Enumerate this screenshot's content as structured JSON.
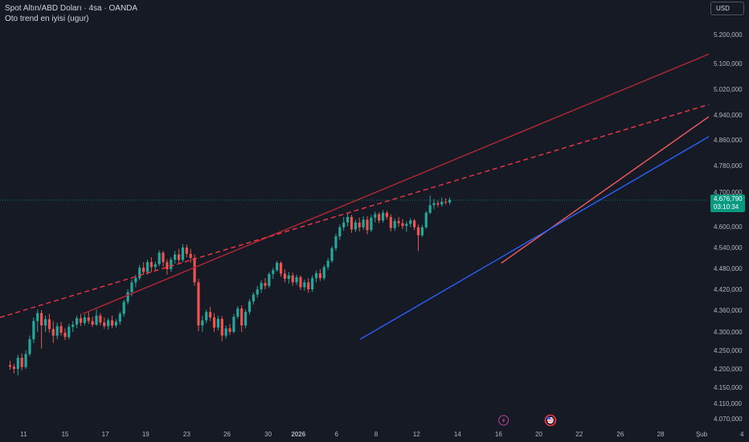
{
  "header": {
    "title": "Spot Altın/ABD Doları · 4sa · OANDA",
    "indicator": "Oto trend en iyisi (ugur)",
    "currency": "USD"
  },
  "chart_data": {
    "type": "candlestick",
    "y_axis_labels": [
      "5.200,000",
      "5.100,000",
      "5.020,000",
      "4.940,000",
      "4.860,000",
      "4.780,000",
      "4.700,000",
      "4.600,000",
      "4.540,000",
      "4.480,000",
      "4.420,000",
      "4.360,000",
      "4.300,000",
      "4.250,000",
      "4.200,000",
      "4.150,000",
      "4.110,000",
      "4.070,000"
    ],
    "y_axis_values": [
      5200,
      5100,
      5020,
      4940,
      4860,
      4780,
      4700,
      4600,
      4540,
      4480,
      4420,
      4360,
      4300,
      4250,
      4200,
      4150,
      4110,
      4070
    ],
    "x_axis_labels": [
      "11",
      "15",
      "17",
      "19",
      "23",
      "26",
      "30",
      "2026",
      "6",
      "8",
      "12",
      "14",
      "16",
      "20",
      "22",
      "26",
      "28",
      "Şub",
      "4"
    ],
    "x_axis_positions": [
      0.06,
      5.8,
      11.4,
      17,
      22.7,
      28.3,
      34,
      38.2,
      43.5,
      49,
      54.6,
      60.3,
      66,
      71.6,
      77.2,
      82.9,
      88.5,
      94.2,
      99.8
    ],
    "x_range": [
      -2,
      102
    ],
    "current_price": "4.676,790",
    "current_price_value": 4676.79,
    "countdown": "03:10:34",
    "grid": false,
    "candles": [
      {
        "t": 0,
        "o": 4210,
        "h": 4222,
        "l": 4198,
        "c": 4206
      },
      {
        "t": 1,
        "o": 4206,
        "h": 4214,
        "l": 4188,
        "c": 4200
      },
      {
        "t": 2,
        "o": 4200,
        "h": 4238,
        "l": 4182,
        "c": 4230
      },
      {
        "t": 3,
        "o": 4230,
        "h": 4242,
        "l": 4196,
        "c": 4205
      },
      {
        "t": 4,
        "o": 4205,
        "h": 4250,
        "l": 4200,
        "c": 4240
      },
      {
        "t": 5,
        "o": 4240,
        "h": 4290,
        "l": 4234,
        "c": 4280
      },
      {
        "t": 6,
        "o": 4280,
        "h": 4340,
        "l": 4270,
        "c": 4330
      },
      {
        "t": 7,
        "o": 4330,
        "h": 4362,
        "l": 4300,
        "c": 4352
      },
      {
        "t": 8,
        "o": 4352,
        "h": 4360,
        "l": 4255,
        "c": 4318
      },
      {
        "t": 9,
        "o": 4318,
        "h": 4345,
        "l": 4300,
        "c": 4335
      },
      {
        "t": 10,
        "o": 4335,
        "h": 4350,
        "l": 4298,
        "c": 4308
      },
      {
        "t": 11,
        "o": 4308,
        "h": 4330,
        "l": 4270,
        "c": 4290
      },
      {
        "t": 12,
        "o": 4290,
        "h": 4325,
        "l": 4280,
        "c": 4316
      },
      {
        "t": 13,
        "o": 4316,
        "h": 4328,
        "l": 4290,
        "c": 4298
      },
      {
        "t": 14,
        "o": 4298,
        "h": 4310,
        "l": 4278,
        "c": 4286
      },
      {
        "t": 15,
        "o": 4286,
        "h": 4322,
        "l": 4280,
        "c": 4314
      },
      {
        "t": 16,
        "o": 4314,
        "h": 4330,
        "l": 4300,
        "c": 4320
      },
      {
        "t": 17,
        "o": 4320,
        "h": 4345,
        "l": 4310,
        "c": 4338
      },
      {
        "t": 18,
        "o": 4338,
        "h": 4350,
        "l": 4316,
        "c": 4325
      },
      {
        "t": 19,
        "o": 4325,
        "h": 4348,
        "l": 4318,
        "c": 4340
      },
      {
        "t": 20,
        "o": 4340,
        "h": 4356,
        "l": 4322,
        "c": 4330
      },
      {
        "t": 21,
        "o": 4330,
        "h": 4342,
        "l": 4314,
        "c": 4320
      },
      {
        "t": 22,
        "o": 4320,
        "h": 4362,
        "l": 4316,
        "c": 4345
      },
      {
        "t": 23,
        "o": 4345,
        "h": 4352,
        "l": 4318,
        "c": 4326
      },
      {
        "t": 24,
        "o": 4326,
        "h": 4340,
        "l": 4308,
        "c": 4316
      },
      {
        "t": 25,
        "o": 4316,
        "h": 4338,
        "l": 4306,
        "c": 4332
      },
      {
        "t": 26,
        "o": 4332,
        "h": 4345,
        "l": 4310,
        "c": 4318
      },
      {
        "t": 27,
        "o": 4318,
        "h": 4336,
        "l": 4312,
        "c": 4328
      },
      {
        "t": 28,
        "o": 4328,
        "h": 4356,
        "l": 4320,
        "c": 4350
      },
      {
        "t": 29,
        "o": 4350,
        "h": 4390,
        "l": 4342,
        "c": 4384
      },
      {
        "t": 30,
        "o": 4384,
        "h": 4420,
        "l": 4376,
        "c": 4412
      },
      {
        "t": 31,
        "o": 4412,
        "h": 4448,
        "l": 4400,
        "c": 4440
      },
      {
        "t": 32,
        "o": 4440,
        "h": 4462,
        "l": 4426,
        "c": 4452
      },
      {
        "t": 33,
        "o": 4452,
        "h": 4490,
        "l": 4446,
        "c": 4482
      },
      {
        "t": 34,
        "o": 4482,
        "h": 4498,
        "l": 4462,
        "c": 4470
      },
      {
        "t": 35,
        "o": 4470,
        "h": 4505,
        "l": 4462,
        "c": 4498
      },
      {
        "t": 36,
        "o": 4498,
        "h": 4512,
        "l": 4470,
        "c": 4484
      },
      {
        "t": 37,
        "o": 4484,
        "h": 4500,
        "l": 4472,
        "c": 4492
      },
      {
        "t": 38,
        "o": 4492,
        "h": 4532,
        "l": 4486,
        "c": 4525
      },
      {
        "t": 39,
        "o": 4525,
        "h": 4530,
        "l": 4485,
        "c": 4498
      },
      {
        "t": 40,
        "o": 4498,
        "h": 4506,
        "l": 4462,
        "c": 4478
      },
      {
        "t": 41,
        "o": 4478,
        "h": 4512,
        "l": 4470,
        "c": 4505
      },
      {
        "t": 42,
        "o": 4505,
        "h": 4530,
        "l": 4494,
        "c": 4520
      },
      {
        "t": 43,
        "o": 4520,
        "h": 4536,
        "l": 4496,
        "c": 4504
      },
      {
        "t": 44,
        "o": 4504,
        "h": 4550,
        "l": 4498,
        "c": 4540
      },
      {
        "t": 45,
        "o": 4540,
        "h": 4548,
        "l": 4512,
        "c": 4522
      },
      {
        "t": 46,
        "o": 4522,
        "h": 4536,
        "l": 4496,
        "c": 4510
      },
      {
        "t": 47,
        "o": 4510,
        "h": 4520,
        "l": 4430,
        "c": 4440
      },
      {
        "t": 48,
        "o": 4440,
        "h": 4450,
        "l": 4302,
        "c": 4318
      },
      {
        "t": 49,
        "o": 4318,
        "h": 4345,
        "l": 4300,
        "c": 4332
      },
      {
        "t": 50,
        "o": 4332,
        "h": 4362,
        "l": 4324,
        "c": 4355
      },
      {
        "t": 51,
        "o": 4355,
        "h": 4370,
        "l": 4330,
        "c": 4340
      },
      {
        "t": 52,
        "o": 4340,
        "h": 4352,
        "l": 4300,
        "c": 4312
      },
      {
        "t": 53,
        "o": 4312,
        "h": 4345,
        "l": 4304,
        "c": 4336
      },
      {
        "t": 54,
        "o": 4336,
        "h": 4344,
        "l": 4275,
        "c": 4290
      },
      {
        "t": 55,
        "o": 4290,
        "h": 4318,
        "l": 4282,
        "c": 4310
      },
      {
        "t": 56,
        "o": 4310,
        "h": 4322,
        "l": 4292,
        "c": 4300
      },
      {
        "t": 57,
        "o": 4300,
        "h": 4350,
        "l": 4296,
        "c": 4342
      },
      {
        "t": 58,
        "o": 4342,
        "h": 4372,
        "l": 4336,
        "c": 4365
      },
      {
        "t": 59,
        "o": 4365,
        "h": 4374,
        "l": 4300,
        "c": 4318
      },
      {
        "t": 60,
        "o": 4318,
        "h": 4362,
        "l": 4310,
        "c": 4355
      },
      {
        "t": 61,
        "o": 4355,
        "h": 4392,
        "l": 4348,
        "c": 4385
      },
      {
        "t": 62,
        "o": 4385,
        "h": 4412,
        "l": 4376,
        "c": 4405
      },
      {
        "t": 63,
        "o": 4405,
        "h": 4430,
        "l": 4396,
        "c": 4420
      },
      {
        "t": 64,
        "o": 4420,
        "h": 4446,
        "l": 4410,
        "c": 4438
      },
      {
        "t": 65,
        "o": 4438,
        "h": 4452,
        "l": 4420,
        "c": 4430
      },
      {
        "t": 66,
        "o": 4430,
        "h": 4470,
        "l": 4424,
        "c": 4464
      },
      {
        "t": 67,
        "o": 4464,
        "h": 4482,
        "l": 4450,
        "c": 4475
      },
      {
        "t": 68,
        "o": 4475,
        "h": 4502,
        "l": 4470,
        "c": 4496
      },
      {
        "t": 69,
        "o": 4496,
        "h": 4500,
        "l": 4456,
        "c": 4465
      },
      {
        "t": 70,
        "o": 4465,
        "h": 4478,
        "l": 4440,
        "c": 4450
      },
      {
        "t": 71,
        "o": 4450,
        "h": 4470,
        "l": 4436,
        "c": 4460
      },
      {
        "t": 72,
        "o": 4460,
        "h": 4468,
        "l": 4430,
        "c": 4440
      },
      {
        "t": 73,
        "o": 4440,
        "h": 4462,
        "l": 4432,
        "c": 4455
      },
      {
        "t": 74,
        "o": 4455,
        "h": 4460,
        "l": 4418,
        "c": 4426
      },
      {
        "t": 75,
        "o": 4426,
        "h": 4448,
        "l": 4416,
        "c": 4440
      },
      {
        "t": 76,
        "o": 4440,
        "h": 4452,
        "l": 4410,
        "c": 4420
      },
      {
        "t": 77,
        "o": 4420,
        "h": 4460,
        "l": 4412,
        "c": 4452
      },
      {
        "t": 78,
        "o": 4452,
        "h": 4474,
        "l": 4440,
        "c": 4466
      },
      {
        "t": 79,
        "o": 4466,
        "h": 4478,
        "l": 4444,
        "c": 4452
      },
      {
        "t": 80,
        "o": 4452,
        "h": 4490,
        "l": 4446,
        "c": 4484
      },
      {
        "t": 81,
        "o": 4484,
        "h": 4510,
        "l": 4476,
        "c": 4502
      },
      {
        "t": 82,
        "o": 4502,
        "h": 4545,
        "l": 4496,
        "c": 4538
      },
      {
        "t": 83,
        "o": 4538,
        "h": 4580,
        "l": 4530,
        "c": 4572
      },
      {
        "t": 84,
        "o": 4572,
        "h": 4606,
        "l": 4562,
        "c": 4598
      },
      {
        "t": 85,
        "o": 4598,
        "h": 4628,
        "l": 4588,
        "c": 4612
      },
      {
        "t": 86,
        "o": 4612,
        "h": 4638,
        "l": 4600,
        "c": 4628
      },
      {
        "t": 87,
        "o": 4628,
        "h": 4634,
        "l": 4582,
        "c": 4592
      },
      {
        "t": 88,
        "o": 4592,
        "h": 4620,
        "l": 4584,
        "c": 4612
      },
      {
        "t": 89,
        "o": 4612,
        "h": 4626,
        "l": 4586,
        "c": 4598
      },
      {
        "t": 90,
        "o": 4598,
        "h": 4630,
        "l": 4590,
        "c": 4620
      },
      {
        "t": 91,
        "o": 4620,
        "h": 4630,
        "l": 4578,
        "c": 4590
      },
      {
        "t": 92,
        "o": 4590,
        "h": 4634,
        "l": 4584,
        "c": 4626
      },
      {
        "t": 93,
        "o": 4626,
        "h": 4644,
        "l": 4612,
        "c": 4636
      },
      {
        "t": 94,
        "o": 4636,
        "h": 4642,
        "l": 4610,
        "c": 4618
      },
      {
        "t": 95,
        "o": 4618,
        "h": 4648,
        "l": 4612,
        "c": 4640
      },
      {
        "t": 96,
        "o": 4640,
        "h": 4646,
        "l": 4620,
        "c": 4628
      },
      {
        "t": 97,
        "o": 4628,
        "h": 4636,
        "l": 4586,
        "c": 4596
      },
      {
        "t": 98,
        "o": 4596,
        "h": 4624,
        "l": 4588,
        "c": 4616
      },
      {
        "t": 99,
        "o": 4616,
        "h": 4628,
        "l": 4600,
        "c": 4610
      },
      {
        "t": 100,
        "o": 4610,
        "h": 4622,
        "l": 4592,
        "c": 4602
      },
      {
        "t": 101,
        "o": 4602,
        "h": 4615,
        "l": 4585,
        "c": 4608
      },
      {
        "t": 102,
        "o": 4608,
        "h": 4625,
        "l": 4598,
        "c": 4618
      },
      {
        "t": 103,
        "o": 4618,
        "h": 4622,
        "l": 4590,
        "c": 4598
      },
      {
        "t": 104,
        "o": 4598,
        "h": 4606,
        "l": 4530,
        "c": 4575
      },
      {
        "t": 105,
        "o": 4575,
        "h": 4605,
        "l": 4570,
        "c": 4598
      },
      {
        "t": 106,
        "o": 4598,
        "h": 4645,
        "l": 4594,
        "c": 4640
      },
      {
        "t": 107,
        "o": 4640,
        "h": 4690,
        "l": 4636,
        "c": 4662
      },
      {
        "t": 108,
        "o": 4662,
        "h": 4680,
        "l": 4650,
        "c": 4668
      },
      {
        "t": 109,
        "o": 4668,
        "h": 4675,
        "l": 4656,
        "c": 4664
      },
      {
        "t": 110,
        "o": 4664,
        "h": 4684,
        "l": 4658,
        "c": 4672
      },
      {
        "t": 111,
        "o": 4672,
        "h": 4682,
        "l": 4664,
        "c": 4670
      },
      {
        "t": 112,
        "o": 4670,
        "h": 4684,
        "l": 4664,
        "c": 4677
      }
    ],
    "trendlines": [
      {
        "name": "upper-dark-red",
        "color": "#b22833",
        "style": "solid",
        "from": {
          "x": 9.5,
          "y": 4350
        },
        "to": {
          "x": 102,
          "y": 5190
        }
      },
      {
        "name": "dashed-red",
        "color": "#f23645",
        "style": "dashed",
        "from": {
          "x": -2,
          "y": 4340
        },
        "to": {
          "x": 102,
          "y": 5010
        }
      },
      {
        "name": "channel-top-red",
        "color": "#f05a5e",
        "style": "solid",
        "from": {
          "x": 67.6,
          "y": 4495
        },
        "to": {
          "x": 102,
          "y": 5023
        }
      },
      {
        "name": "channel-bottom-blue",
        "color": "#2962ff",
        "style": "solid",
        "from": {
          "x": 48,
          "y": 4280
        },
        "to": {
          "x": 102,
          "y": 4945
        }
      }
    ]
  },
  "colors": {
    "background": "#161a25",
    "bull": "#26a69a",
    "bear": "#ef5350",
    "price_tag": "#089981"
  },
  "markers": [
    {
      "name": "lightning-event-icon",
      "x": 66.7
    },
    {
      "name": "us-flag-event-icon",
      "x": 73.2
    }
  ]
}
